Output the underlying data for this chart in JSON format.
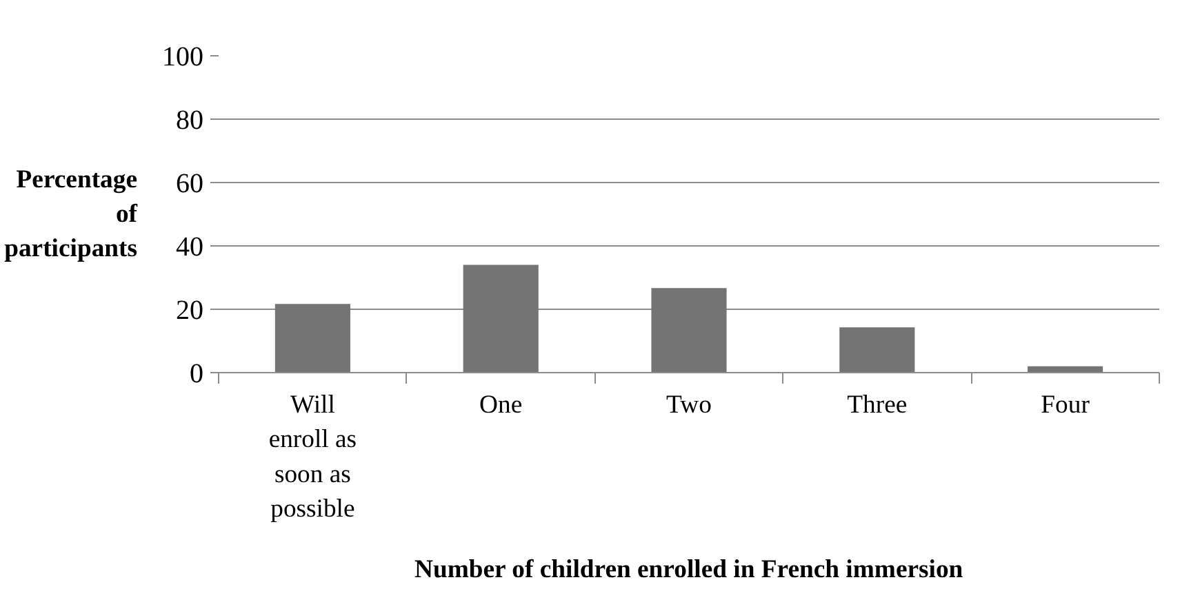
{
  "chart_data": {
    "type": "bar",
    "xlabel": "Number of children enrolled in French immersion",
    "ylabel": "Percentage of participants",
    "categories": [
      "Will enroll as soon as possible",
      "One",
      "Two",
      "Three",
      "Four"
    ],
    "values": [
      21.7,
      34,
      26.7,
      14.3,
      2
    ],
    "color": "#747474",
    "ylim": [
      0,
      100
    ],
    "yticks": [
      0,
      20,
      40,
      60,
      80,
      100
    ],
    "grid": "y"
  }
}
